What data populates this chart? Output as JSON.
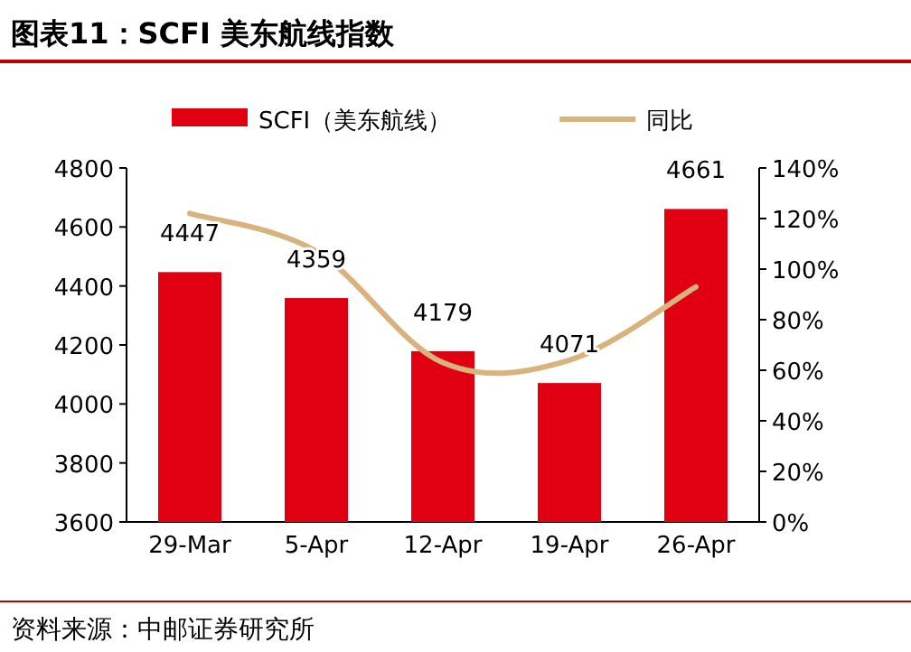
{
  "chart_data": {
    "type": "bar",
    "title": "图表11：SCFI 美东航线指数",
    "categories": [
      "29-Mar",
      "5-Apr",
      "12-Apr",
      "19-Apr",
      "26-Apr"
    ],
    "series": [
      {
        "name": "SCFI（美东航线）",
        "color": "#e00012",
        "values": [
          4447,
          4359,
          4179,
          4071,
          4661
        ],
        "value_labels": [
          "4447",
          "4359",
          "4179",
          "4071",
          "4661"
        ]
      },
      {
        "name": "同比",
        "type": "line",
        "axis": "y2",
        "color": "#d9b37e",
        "values": [
          122,
          107,
          63,
          64,
          93
        ]
      }
    ],
    "ylim": [
      3600,
      4800
    ],
    "yticks": [
      3600,
      3800,
      4000,
      4200,
      4400,
      4600,
      4800
    ],
    "y2lim": [
      0,
      140
    ],
    "y2ticks": [
      {
        "value": 0,
        "label": "0%"
      },
      {
        "value": 20,
        "label": "20%"
      },
      {
        "value": 40,
        "label": "40%"
      },
      {
        "value": 60,
        "label": "60%"
      },
      {
        "value": 80,
        "label": "80%"
      },
      {
        "value": 100,
        "label": "100%"
      },
      {
        "value": 120,
        "label": "120%"
      },
      {
        "value": 140,
        "label": "140%"
      }
    ],
    "legend": "top",
    "grid": false,
    "annotations": [
      "资料来源：中邮证券研究所"
    ]
  }
}
